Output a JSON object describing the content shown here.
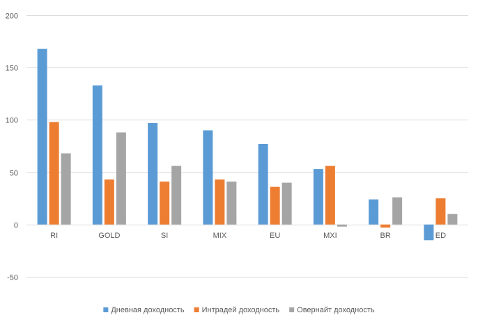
{
  "chart_data": {
    "type": "bar",
    "categories": [
      "RI",
      "GOLD",
      "SI",
      "MIX",
      "EU",
      "MXI",
      "BR",
      "ED"
    ],
    "series": [
      {
        "name": "Дневная доходность",
        "color": "#5b9bd5",
        "values": [
          168,
          133,
          97,
          90,
          77,
          53,
          24,
          -15
        ]
      },
      {
        "name": "Интрадей доходность",
        "color": "#ed7d31",
        "values": [
          98,
          43,
          41,
          43,
          36,
          56,
          -3,
          25
        ]
      },
      {
        "name": "Овернайт доходность",
        "color": "#a5a5a5",
        "values": [
          68,
          88,
          56,
          41,
          40,
          -2,
          26,
          10
        ]
      }
    ],
    "ylim": [
      -50,
      200
    ],
    "yticks": [
      200,
      150,
      100,
      50,
      0,
      -50
    ],
    "grid": true,
    "legend_position": "bottom"
  }
}
